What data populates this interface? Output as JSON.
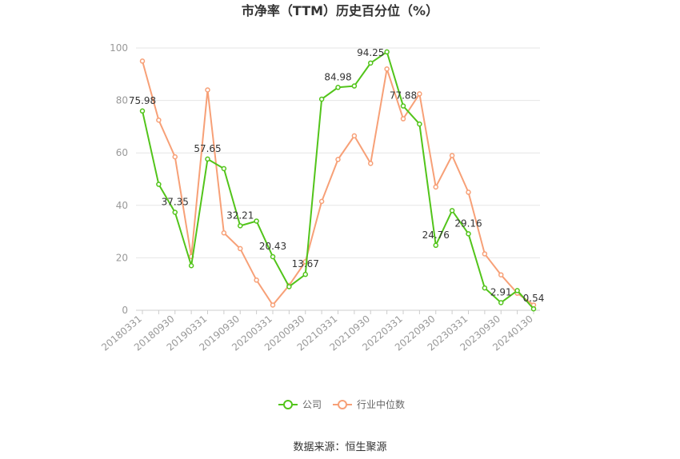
{
  "chart_data": {
    "type": "line",
    "title": "市净率（TTM）历史百分位（%）",
    "xlabel": "",
    "ylabel": "",
    "ylim": [
      0,
      100
    ],
    "yticks": [
      0,
      20,
      40,
      60,
      80,
      100
    ],
    "grid": true,
    "legend_position": "bottom-center",
    "x": [
      "20180331",
      "20180630",
      "20180930",
      "20181231",
      "20190331",
      "20190630",
      "20190930",
      "20191231",
      "20200331",
      "20200630",
      "20200930",
      "20201231",
      "20210331",
      "20210630",
      "20210930",
      "20211231",
      "20220331",
      "20220630",
      "20220930",
      "20221231",
      "20230331",
      "20230630",
      "20230930",
      "20231231",
      "20240130"
    ],
    "xtick_labels": [
      "20180331",
      "20180930",
      "20190331",
      "20190930",
      "20200331",
      "20200930",
      "20210331",
      "20210930",
      "20220331",
      "20220930",
      "20230331",
      "20230930",
      "20240130"
    ],
    "series": [
      {
        "name": "公司",
        "color": "#52c41a",
        "values": [
          75.98,
          48.0,
          37.35,
          17.0,
          57.65,
          54.0,
          32.21,
          34.0,
          20.43,
          9.0,
          13.67,
          80.5,
          84.98,
          85.5,
          94.25,
          98.5,
          77.88,
          71.0,
          24.76,
          38.0,
          29.16,
          8.5,
          2.91,
          7.5,
          0.54
        ]
      },
      {
        "name": "行业中位数",
        "color": "#f7a077",
        "values": [
          95.0,
          72.5,
          58.5,
          20.5,
          84.0,
          29.5,
          23.5,
          11.5,
          2.0,
          9.5,
          18.5,
          41.5,
          57.5,
          66.5,
          56.0,
          92.0,
          73.0,
          82.5,
          47.0,
          59.0,
          45.0,
          21.5,
          13.5,
          6.5,
          2.0
        ]
      }
    ],
    "data_labels": [
      {
        "index": 0,
        "text": "75.98"
      },
      {
        "index": 2,
        "text": "37.35"
      },
      {
        "index": 4,
        "text": "57.65"
      },
      {
        "index": 6,
        "text": "32.21"
      },
      {
        "index": 8,
        "text": "20.43"
      },
      {
        "index": 10,
        "text": "13.67"
      },
      {
        "index": 12,
        "text": "84.98"
      },
      {
        "index": 14,
        "text": "94.25"
      },
      {
        "index": 16,
        "text": "77.88"
      },
      {
        "index": 18,
        "text": "24.76"
      },
      {
        "index": 20,
        "text": "29.16"
      },
      {
        "index": 22,
        "text": "2.91"
      },
      {
        "index": 24,
        "text": "0.54"
      }
    ]
  },
  "footer": {
    "source": "数据来源：恒生聚源"
  }
}
